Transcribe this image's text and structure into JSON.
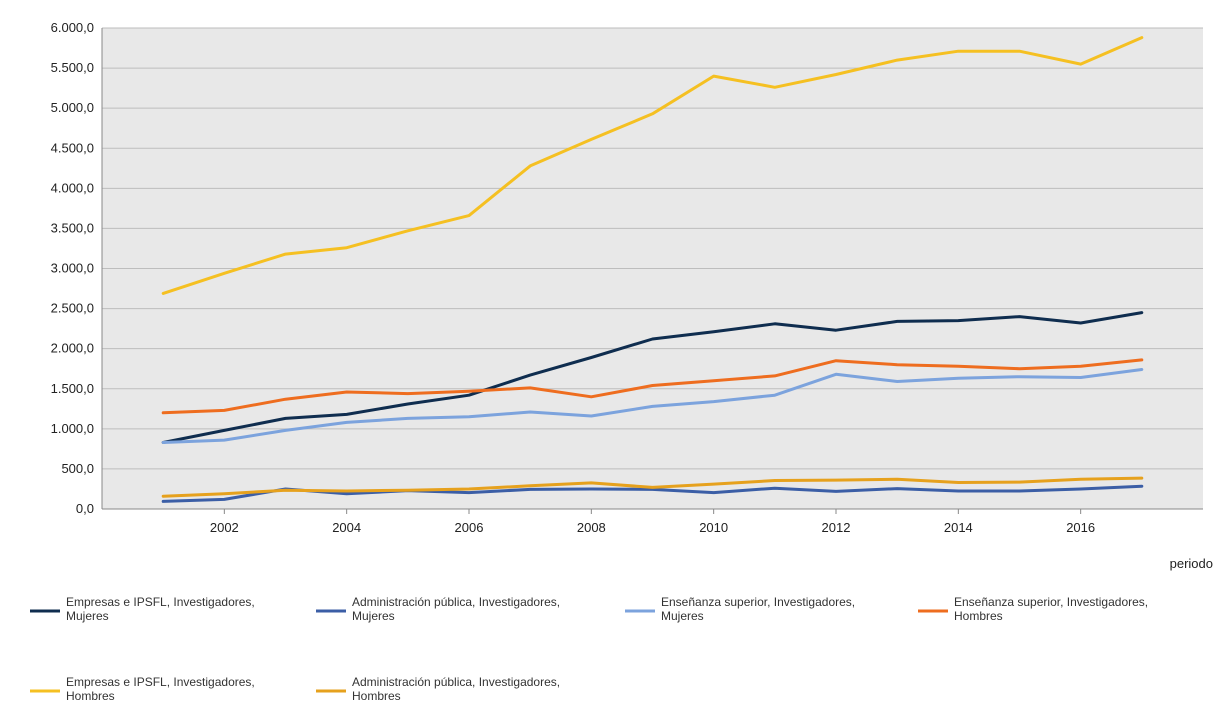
{
  "chart_data": {
    "type": "line",
    "title": "",
    "xlabel": "periodo",
    "ylabel": "",
    "x": [
      2001,
      2002,
      2003,
      2004,
      2005,
      2006,
      2007,
      2008,
      2009,
      2010,
      2011,
      2012,
      2013,
      2014,
      2015,
      2016,
      2017
    ],
    "xticks": [
      "2002",
      "2004",
      "2006",
      "2008",
      "2010",
      "2012",
      "2014",
      "2016"
    ],
    "ylim": [
      0,
      6000
    ],
    "yticks": [
      "0,0",
      "500,0",
      "1.000,0",
      "1.500,0",
      "2.000,0",
      "2.500,0",
      "3.000,0",
      "3.500,0",
      "4.000,0",
      "4.500,0",
      "5.000,0",
      "5.500,0",
      "6.000,0"
    ],
    "grid": true,
    "legend_position": "bottom",
    "series": [
      {
        "name_line1": "Empresas e IPSFL, Investigadores,",
        "name_line2": "Mujeres",
        "color": "#0f2d4f",
        "values": [
          830,
          980,
          1130,
          1180,
          1310,
          1420,
          1670,
          1890,
          2120,
          2210,
          2310,
          2230,
          2340,
          2350,
          2400,
          2320,
          2450
        ]
      },
      {
        "name_line1": "Administración pública, Investigadores,",
        "name_line2": "Mujeres",
        "color": "#3b5ea6",
        "values": [
          95,
          120,
          250,
          190,
          230,
          205,
          245,
          250,
          245,
          205,
          260,
          220,
          255,
          225,
          225,
          250,
          285
        ]
      },
      {
        "name_line1": "Enseñanza superior, Investigadores,",
        "name_line2": "Mujeres",
        "color": "#7ca3dd",
        "values": [
          830,
          860,
          980,
          1080,
          1130,
          1150,
          1210,
          1160,
          1280,
          1340,
          1420,
          1680,
          1590,
          1630,
          1650,
          1640,
          1740
        ]
      },
      {
        "name_line1": "Enseñanza superior, Investigadores,",
        "name_line2": "Hombres",
        "color": "#ee6d1f",
        "values": [
          1200,
          1230,
          1370,
          1460,
          1440,
          1470,
          1510,
          1400,
          1540,
          1600,
          1660,
          1850,
          1800,
          1780,
          1750,
          1780,
          1860
        ]
      },
      {
        "name_line1": "Empresas e IPSFL, Investigadores,",
        "name_line2": "Hombres",
        "color": "#f5c022",
        "values": [
          2690,
          2940,
          3180,
          3260,
          3470,
          3660,
          4280,
          4610,
          4930,
          5400,
          5260,
          5420,
          5600,
          5710,
          5710,
          5550,
          5880
        ]
      },
      {
        "name_line1": "Administración pública, Investigadores,",
        "name_line2": "Hombres",
        "color": "#e6a11d",
        "values": [
          160,
          190,
          235,
          225,
          235,
          250,
          290,
          325,
          270,
          310,
          355,
          360,
          370,
          330,
          335,
          370,
          385
        ]
      }
    ]
  }
}
